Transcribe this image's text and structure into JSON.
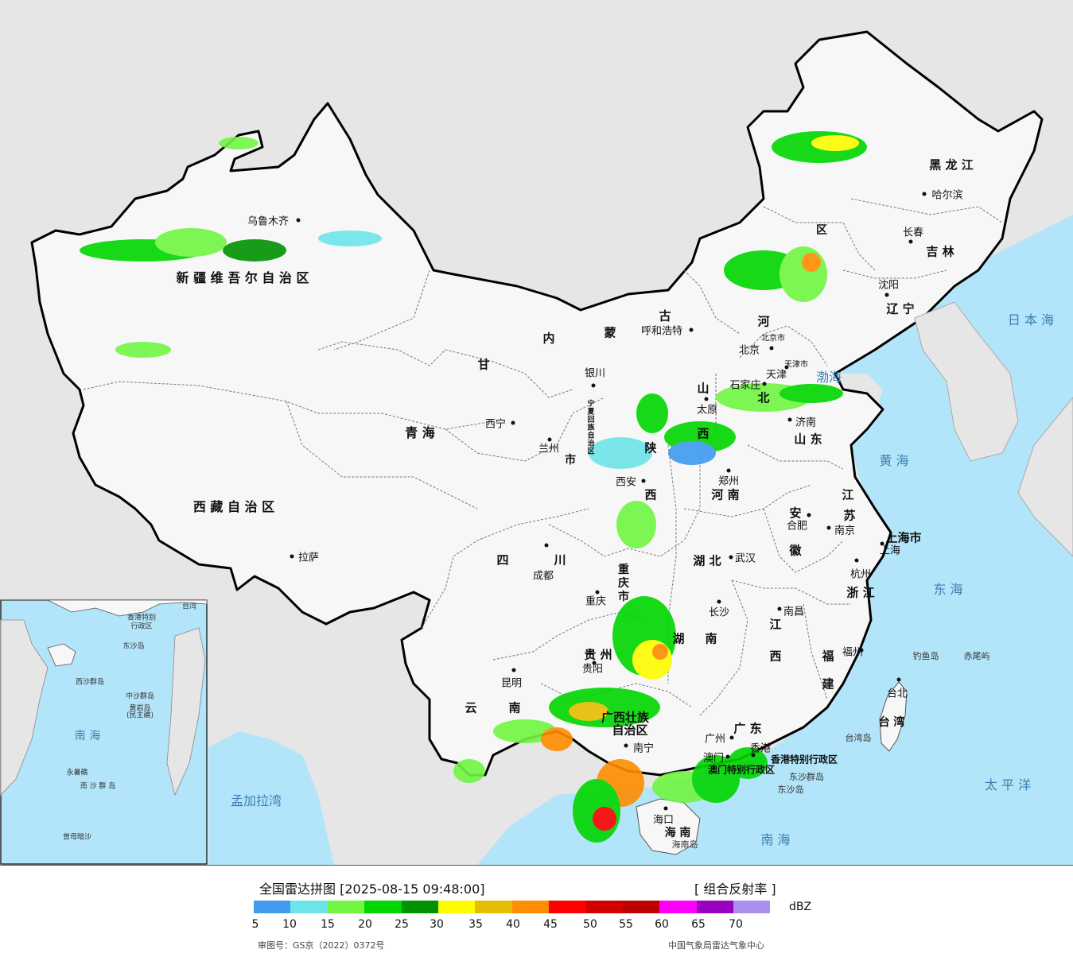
{
  "map": {
    "provinces": [
      {
        "name": "新 疆 维 吾 尔 自 治 区",
        "pos": [
          305,
          348
        ],
        "size": 16
      },
      {
        "name": "西 藏 自 治 区",
        "pos": [
          294,
          636
        ],
        "size": 16
      },
      {
        "name": "青        海",
        "pos": [
          528,
          543
        ],
        "size": 16
      },
      {
        "name": "甘",
        "pos": [
          608,
          458
        ],
        "size": 15
      },
      {
        "name": "内",
        "pos": [
          690,
          425
        ],
        "size": 15
      },
      {
        "name": "蒙",
        "pos": [
          767,
          418
        ],
        "size": 15
      },
      {
        "name": "古",
        "pos": [
          836,
          397
        ],
        "size": 15
      },
      {
        "name": "四",
        "pos": [
          632,
          704
        ],
        "size": 15
      },
      {
        "name": "川",
        "pos": [
          704,
          704
        ],
        "size": 15
      },
      {
        "name": "云",
        "pos": [
          592,
          890
        ],
        "size": 15
      },
      {
        "name": "南",
        "pos": [
          647,
          890
        ],
        "size": 15
      },
      {
        "name": "陕",
        "pos": [
          818,
          563
        ],
        "size": 15
      },
      {
        "name": "西",
        "pos": [
          818,
          622
        ],
        "size": 15
      },
      {
        "name": "山",
        "pos": [
          884,
          488
        ],
        "size": 15
      },
      {
        "name": "西",
        "pos": [
          884,
          545
        ],
        "size": 15
      },
      {
        "name": "河",
        "pos": [
          960,
          404
        ],
        "size": 15
      },
      {
        "name": "北",
        "pos": [
          960,
          500
        ],
        "size": 15
      },
      {
        "name": "河    南",
        "pos": [
          912,
          622
        ],
        "size": 15
      },
      {
        "name": "山  东",
        "pos": [
          1016,
          552
        ],
        "size": 15
      },
      {
        "name": "湖    北",
        "pos": [
          889,
          705
        ],
        "size": 15
      },
      {
        "name": "湖",
        "pos": [
          853,
          803
        ],
        "size": 15
      },
      {
        "name": "南",
        "pos": [
          894,
          803
        ],
        "size": 15
      },
      {
        "name": "江",
        "pos": [
          975,
          785
        ],
        "size": 15
      },
      {
        "name": "西",
        "pos": [
          975,
          825
        ],
        "size": 15
      },
      {
        "name": "贵  州",
        "pos": [
          752,
          823
        ],
        "size": 15
      },
      {
        "name": "广西壮族",
        "pos": [
          786,
          902
        ],
        "size": 15
      },
      {
        "name": "自治区",
        "pos": [
          792,
          918
        ],
        "size": 15
      },
      {
        "name": "广  东",
        "pos": [
          940,
          916
        ],
        "size": 15
      },
      {
        "name": "福",
        "pos": [
          1041,
          825
        ],
        "size": 15
      },
      {
        "name": "建",
        "pos": [
          1041,
          860
        ],
        "size": 15
      },
      {
        "name": "浙  江",
        "pos": [
          1082,
          745
        ],
        "size": 15
      },
      {
        "name": "江",
        "pos": [
          1066,
          622
        ],
        "size": 15
      },
      {
        "name": "苏",
        "pos": [
          1068,
          648
        ],
        "size": 15
      },
      {
        "name": "安",
        "pos": [
          1000,
          645
        ],
        "size": 15
      },
      {
        "name": "徽",
        "pos": [
          1000,
          692
        ],
        "size": 15
      },
      {
        "name": "黑  龙  江",
        "pos": [
          1196,
          207
        ],
        "size": 15
      },
      {
        "name": "吉  林",
        "pos": [
          1182,
          316
        ],
        "size": 15
      },
      {
        "name": "辽  宁",
        "pos": [
          1132,
          388
        ],
        "size": 15
      },
      {
        "name": "宁",
        "pos": [
          743,
          507
        ],
        "size": 9
      },
      {
        "name": "夏",
        "pos": [
          743,
          517
        ],
        "size": 9
      },
      {
        "name": "回",
        "pos": [
          743,
          527
        ],
        "size": 9
      },
      {
        "name": "族",
        "pos": [
          743,
          537
        ],
        "size": 9
      },
      {
        "name": "自",
        "pos": [
          743,
          547
        ],
        "size": 9
      },
      {
        "name": "治",
        "pos": [
          743,
          557
        ],
        "size": 9
      },
      {
        "name": "区",
        "pos": [
          743,
          567
        ],
        "size": 9
      },
      {
        "name": "台 湾",
        "pos": [
          1121,
          908
        ],
        "size": 14
      },
      {
        "name": "海  南",
        "pos": [
          852,
          1047
        ],
        "size": 14
      },
      {
        "name": "重",
        "pos": [
          784,
          716
        ],
        "size": 14
      },
      {
        "name": "庆",
        "pos": [
          784,
          733
        ],
        "size": 14
      },
      {
        "name": "市",
        "pos": [
          784,
          750
        ],
        "size": 14
      },
      {
        "name": "市",
        "pos": [
          717,
          578
        ],
        "size": 14
      },
      {
        "name": "区",
        "pos": [
          1033,
          289
        ],
        "size": 14
      }
    ],
    "cities": [
      {
        "name": "乌鲁木齐",
        "dot": [
          375,
          277
        ],
        "label": [
          337,
          277
        ]
      },
      {
        "name": "拉萨",
        "dot": [
          367,
          700
        ],
        "label": [
          388,
          700
        ]
      },
      {
        "name": "西宁",
        "dot": [
          645,
          532
        ],
        "label": [
          623,
          532
        ]
      },
      {
        "name": "兰州",
        "dot": [
          691,
          553
        ],
        "label": [
          690,
          563
        ]
      },
      {
        "name": "银川",
        "dot": [
          746,
          485
        ],
        "label": [
          748,
          468
        ]
      },
      {
        "name": "呼和浩特",
        "dot": [
          869,
          415
        ],
        "label": [
          832,
          415
        ]
      },
      {
        "name": "北京",
        "dot": [
          970,
          438
        ],
        "label": [
          942,
          439
        ]
      },
      {
        "name": "天津",
        "dot": [
          989,
          462
        ],
        "label": [
          976,
          470
        ]
      },
      {
        "name": "石家庄",
        "dot": [
          961,
          483
        ],
        "label": [
          937,
          483
        ]
      },
      {
        "name": "太原",
        "dot": [
          888,
          502
        ],
        "label": [
          889,
          514
        ]
      },
      {
        "name": "济南",
        "dot": [
          993,
          528
        ],
        "label": [
          1013,
          530
        ]
      },
      {
        "name": "郑州",
        "dot": [
          916,
          592
        ],
        "label": [
          916,
          604
        ]
      },
      {
        "name": "西安",
        "dot": [
          809,
          605
        ],
        "label": [
          787,
          605
        ]
      },
      {
        "name": "成都",
        "dot": [
          687,
          686
        ],
        "label": [
          683,
          723
        ]
      },
      {
        "name": "重庆",
        "dot": [
          751,
          745
        ],
        "label": [
          749,
          755
        ]
      },
      {
        "name": "武汉",
        "dot": [
          919,
          701
        ],
        "label": [
          937,
          701
        ]
      },
      {
        "name": "合肥",
        "dot": [
          1017,
          648
        ],
        "label": [
          1002,
          660
        ]
      },
      {
        "name": "南京",
        "dot": [
          1042,
          664
        ],
        "label": [
          1062,
          666
        ]
      },
      {
        "name": "上海",
        "dot": [
          1109,
          684
        ],
        "label": [
          1119,
          691
        ]
      },
      {
        "name": "杭州",
        "dot": [
          1077,
          705
        ],
        "label": [
          1082,
          721
        ]
      },
      {
        "name": "长沙",
        "dot": [
          904,
          757
        ],
        "label": [
          904,
          769
        ]
      },
      {
        "name": "南昌",
        "dot": [
          980,
          766
        ],
        "label": [
          998,
          768
        ]
      },
      {
        "name": "贵阳",
        "dot": [
          747,
          834
        ],
        "label": [
          745,
          840
        ]
      },
      {
        "name": "昆明",
        "dot": [
          646,
          843
        ],
        "label": [
          643,
          858
        ]
      },
      {
        "name": "南宁",
        "dot": [
          787,
          938
        ],
        "label": [
          809,
          940
        ]
      },
      {
        "name": "广州",
        "dot": [
          920,
          928
        ],
        "label": [
          899,
          928
        ]
      },
      {
        "name": "福州",
        "dot": [
          1083,
          818
        ],
        "label": [
          1072,
          819
        ]
      },
      {
        "name": "台北",
        "dot": [
          1130,
          855
        ],
        "label": [
          1128,
          871
        ]
      },
      {
        "name": "海口",
        "dot": [
          837,
          1017
        ],
        "label": [
          834,
          1030
        ]
      },
      {
        "name": "哈尔滨",
        "dot": [
          1162,
          244
        ],
        "label": [
          1191,
          244
        ]
      },
      {
        "name": "长春",
        "dot": [
          1145,
          304
        ],
        "label": [
          1148,
          291
        ]
      },
      {
        "name": "沈阳",
        "dot": [
          1115,
          371
        ],
        "label": [
          1117,
          357
        ]
      },
      {
        "name": "澳门",
        "dot": [
          915,
          952
        ],
        "label": [
          897,
          952
        ]
      },
      {
        "name": "香港",
        "dot": [
          947,
          950
        ],
        "label": [
          956,
          940
        ]
      }
    ],
    "municipalities": [
      {
        "name": "上海市",
        "pos": [
          1136,
          676
        ]
      },
      {
        "name": "北京市",
        "pos": [
          972,
          424
        ]
      },
      {
        "name": "天津市",
        "pos": [
          1001,
          457
        ]
      }
    ],
    "special_regions": [
      {
        "name": "香港特别行政区",
        "pos": [
          1011,
          955
        ]
      },
      {
        "name": "澳门特别行政区",
        "pos": [
          932,
          968
        ]
      }
    ],
    "islands": [
      {
        "name": "钓鱼岛",
        "pos": [
          1164,
          825
        ]
      },
      {
        "name": "赤尾屿",
        "pos": [
          1228,
          825
        ]
      },
      {
        "name": "台湾岛",
        "pos": [
          1079,
          928
        ]
      },
      {
        "name": "东沙群岛",
        "pos": [
          1014,
          977
        ]
      },
      {
        "name": "东沙岛",
        "pos": [
          994,
          993
        ]
      },
      {
        "name": "海南岛",
        "pos": [
          861,
          1062
        ]
      }
    ],
    "seas": [
      {
        "name": "渤海",
        "pos": [
          1042,
          473
        ]
      },
      {
        "name": "黄  海",
        "pos": [
          1124,
          578
        ]
      },
      {
        "name": "东  海",
        "pos": [
          1192,
          740
        ]
      },
      {
        "name": "南   海",
        "pos": [
          975,
          1055
        ]
      },
      {
        "name": "太  平  洋",
        "pos": [
          1267,
          986
        ]
      },
      {
        "name": "日 本 海",
        "pos": [
          1296,
          401
        ]
      },
      {
        "name": "孟加拉湾",
        "pos": [
          322,
          1006
        ]
      }
    ],
    "inset": {
      "sea": "南   海",
      "labels": [
        {
          "name": "中沙群岛",
          "pos": [
            176,
            875
          ]
        },
        {
          "name": "黄岩岛",
          "pos": [
            176,
            890
          ]
        },
        {
          "name": "(民主礁)",
          "pos": [
            176,
            899
          ]
        },
        {
          "name": "永暑礁",
          "pos": [
            97,
            971
          ]
        },
        {
          "name": "南 沙 群 岛",
          "pos": [
            123,
            988
          ]
        },
        {
          "name": "曾母暗沙",
          "pos": [
            97,
            1052
          ]
        },
        {
          "name": "西沙群岛",
          "pos": [
            113,
            857
          ]
        },
        {
          "name": "东沙岛",
          "pos": [
            168,
            812
          ]
        },
        {
          "name": "香港特别",
          "pos": [
            178,
            776
          ]
        },
        {
          "name": "行政区",
          "pos": [
            178,
            787
          ]
        },
        {
          "name": "台湾",
          "pos": [
            238,
            762
          ]
        }
      ]
    },
    "colors": {
      "land": "#f7f7f7",
      "ocean": "#b3e5fa",
      "outside": "#e6e6e6",
      "border": "#000000"
    }
  },
  "legend": {
    "title": "全国雷达拼图 [2025-08-15 09:48:00]",
    "product": "[ 组合反射率 ]",
    "unit": "dBZ",
    "scale_colors": [
      "#3f9af0",
      "#6ce4e8",
      "#70f542",
      "#00d600",
      "#009200",
      "#fdfd00",
      "#e6be00",
      "#ff8d00",
      "#ff0000",
      "#d10000",
      "#c00000",
      "#ff00ff",
      "#9900c1",
      "#ac8ef0"
    ],
    "ticks": [
      "5",
      "10",
      "15",
      "20",
      "25",
      "30",
      "35",
      "40",
      "45",
      "50",
      "55",
      "60",
      "65",
      "70"
    ],
    "review_number": "审图号：GS京（2022）0372号",
    "source": "中国气象局雷达气象中心"
  }
}
